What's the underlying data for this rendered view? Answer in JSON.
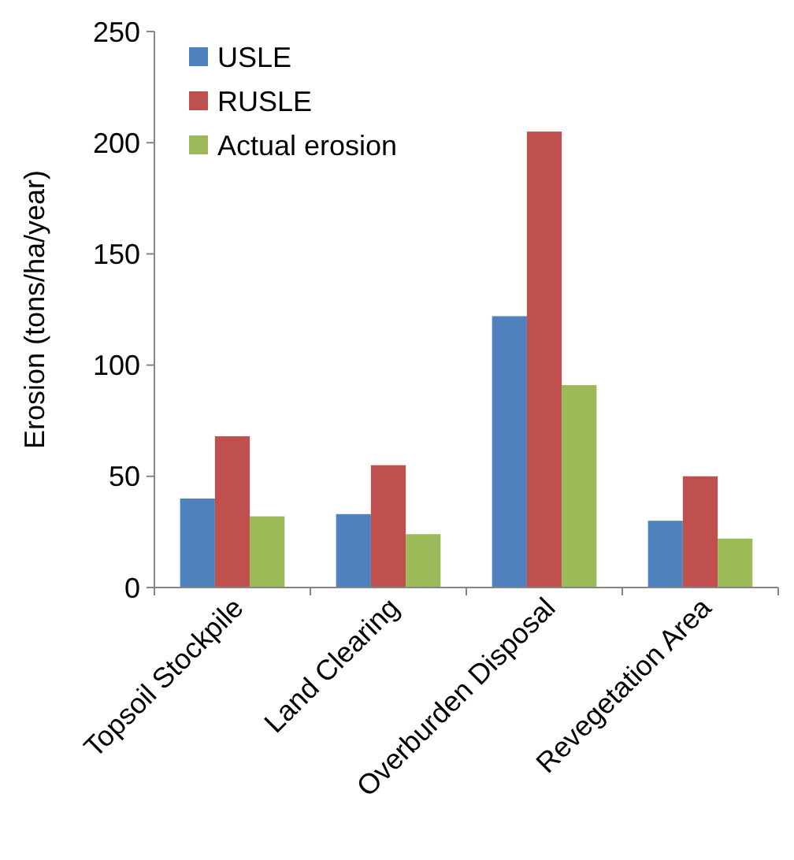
{
  "chart_data": {
    "type": "bar",
    "ylabel": "Erosion (tons/ha/year)",
    "categories": [
      "Topsoil Stockpile",
      "Land Clearing",
      "Overburden Disposal",
      "Revegetation Area"
    ],
    "series": [
      {
        "name": "USLE",
        "color": "#4f81bd",
        "values": [
          40,
          33,
          122,
          30
        ]
      },
      {
        "name": "RUSLE",
        "color": "#c0504d",
        "values": [
          68,
          55,
          205,
          50
        ]
      },
      {
        "name": "Actual erosion",
        "color": "#9bbb59",
        "values": [
          32,
          24,
          91,
          22
        ]
      }
    ],
    "ylim": [
      0,
      250
    ],
    "yticks": [
      0,
      50,
      100,
      150,
      200,
      250
    ],
    "grid": false,
    "legend": "top left"
  }
}
